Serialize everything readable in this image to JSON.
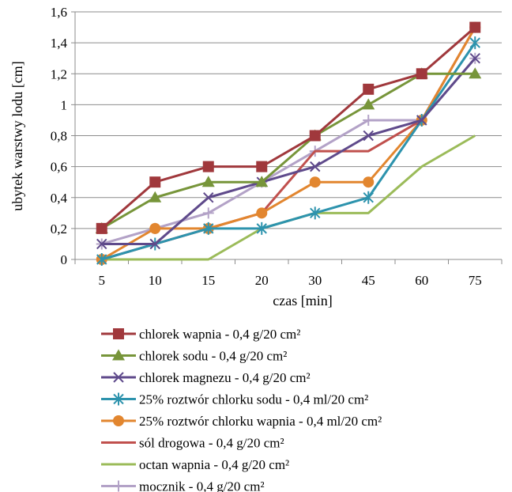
{
  "chart_data": {
    "type": "line",
    "categories": [
      "5",
      "10",
      "15",
      "20",
      "30",
      "45",
      "60",
      "75"
    ],
    "xlabel": "czas [min]",
    "ylabel": "ubytek warstwy lodu [cm]",
    "ylim": [
      0,
      1.6
    ],
    "yticks": [
      "0",
      "0,2",
      "0,4",
      "0,6",
      "0,8",
      "1",
      "1,2",
      "1,4",
      "1,6"
    ],
    "grid": "horizontal",
    "legend_position": "bottom",
    "series": [
      {
        "name": "chlorek wapnia - 0,4 g/20 cm²",
        "color": "#a0383c",
        "marker": "square",
        "values": [
          0.2,
          0.5,
          0.6,
          0.6,
          0.8,
          1.1,
          1.2,
          1.5
        ]
      },
      {
        "name": "chlorek sodu - 0,4 g/20 cm²",
        "color": "#77953a",
        "marker": "triangle",
        "values": [
          0.2,
          0.4,
          0.5,
          0.5,
          0.8,
          1.0,
          1.2,
          1.2
        ]
      },
      {
        "name": "chlorek magnezu - 0,4 g/20 cm²",
        "color": "#5f4a8b",
        "marker": "x",
        "values": [
          0.1,
          0.1,
          0.4,
          0.5,
          0.6,
          0.8,
          0.9,
          1.3
        ]
      },
      {
        "name": "25% roztwór chlorku sodu - 0,4 ml/20 cm²",
        "color": "#2d93ad",
        "marker": "star",
        "values": [
          0.0,
          0.1,
          0.2,
          0.2,
          0.3,
          0.4,
          0.9,
          1.4
        ]
      },
      {
        "name": "25% roztwór chlorku wapnia - 0,4 ml/20 cm²",
        "color": "#e2862f",
        "marker": "circle",
        "values": [
          0.0,
          0.2,
          0.2,
          0.3,
          0.5,
          0.5,
          0.9,
          1.5
        ]
      },
      {
        "name": "sól drogowa - 0,4 g/20 cm²",
        "color": "#c0504d",
        "marker": "none",
        "values": [
          0.0,
          0.1,
          0.2,
          0.3,
          0.7,
          0.7,
          0.9,
          1.5
        ]
      },
      {
        "name": "octan wapnia - 0,4 g/20 cm²",
        "color": "#9bbb59",
        "marker": "none",
        "values": [
          0.0,
          0.0,
          0.0,
          0.2,
          0.3,
          0.3,
          0.6,
          0.8
        ]
      },
      {
        "name": "mocznik - 0,4 g/20 cm²",
        "color": "#b3a2c7",
        "marker": "plus",
        "values": [
          0.1,
          0.2,
          0.3,
          0.5,
          0.7,
          0.9,
          0.9,
          1.3
        ]
      }
    ]
  }
}
